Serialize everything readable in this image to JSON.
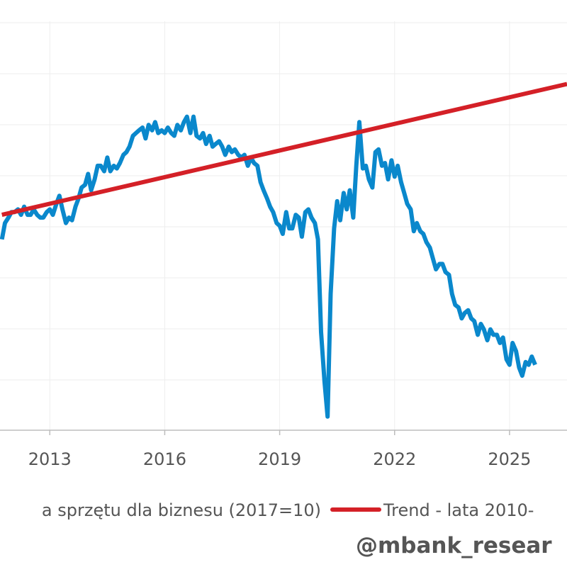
{
  "chart_data": {
    "type": "line",
    "title": "",
    "xlabel": "",
    "ylabel": "",
    "x_ticks": [
      "2013",
      "2016",
      "2019",
      "2022",
      "2025"
    ],
    "xlim": [
      2011.7,
      2026.5
    ],
    "ylim": [
      4.5,
      12.0
    ],
    "grid": true,
    "legend_position": "bottom",
    "series": [
      {
        "name": "…a sprzętu dla biznesu (2017=10)",
        "color": "#0a88cc",
        "x": [
          2011.75,
          2011.83,
          2011.92,
          2012.0,
          2012.08,
          2012.17,
          2012.25,
          2012.33,
          2012.42,
          2012.5,
          2012.58,
          2012.67,
          2012.75,
          2012.83,
          2012.92,
          2013.0,
          2013.08,
          2013.17,
          2013.25,
          2013.33,
          2013.42,
          2013.5,
          2013.58,
          2013.67,
          2013.75,
          2013.83,
          2013.92,
          2014.0,
          2014.08,
          2014.17,
          2014.25,
          2014.33,
          2014.42,
          2014.5,
          2014.58,
          2014.67,
          2014.75,
          2014.83,
          2014.92,
          2015.0,
          2015.08,
          2015.17,
          2015.25,
          2015.33,
          2015.42,
          2015.5,
          2015.58,
          2015.67,
          2015.75,
          2015.83,
          2015.92,
          2016.0,
          2016.08,
          2016.17,
          2016.25,
          2016.33,
          2016.42,
          2016.5,
          2016.58,
          2016.67,
          2016.75,
          2016.83,
          2016.92,
          2017.0,
          2017.08,
          2017.17,
          2017.25,
          2017.33,
          2017.42,
          2017.5,
          2017.58,
          2017.67,
          2017.75,
          2017.83,
          2017.92,
          2018.0,
          2018.08,
          2018.17,
          2018.25,
          2018.33,
          2018.42,
          2018.5,
          2018.58,
          2018.67,
          2018.75,
          2018.83,
          2018.92,
          2019.0,
          2019.08,
          2019.17,
          2019.25,
          2019.33,
          2019.42,
          2019.5,
          2019.58,
          2019.67,
          2019.75,
          2019.83,
          2019.92,
          2020.0,
          2020.08,
          2020.17,
          2020.25,
          2020.33,
          2020.42,
          2020.5,
          2020.58,
          2020.67,
          2020.75,
          2020.83,
          2020.92,
          2021.0,
          2021.08,
          2021.17,
          2021.25,
          2021.33,
          2021.42,
          2021.5,
          2021.58,
          2021.67,
          2021.75,
          2021.83,
          2021.92,
          2022.0,
          2022.08,
          2022.17,
          2022.25,
          2022.33,
          2022.42,
          2022.5,
          2022.58,
          2022.67,
          2022.75,
          2022.83,
          2022.92,
          2023.0,
          2023.08,
          2023.17,
          2023.25,
          2023.33,
          2023.42,
          2023.5,
          2023.58,
          2023.67,
          2023.75,
          2023.83,
          2023.92,
          2024.0,
          2024.08,
          2024.17,
          2024.25,
          2024.33,
          2024.42,
          2024.5,
          2024.58,
          2024.67,
          2024.75,
          2024.83,
          2024.92,
          2025.0,
          2025.08,
          2025.17,
          2025.25,
          2025.33,
          2025.42,
          2025.5,
          2025.58,
          2025.67
        ],
        "values": [
          8.0,
          8.3,
          8.4,
          8.5,
          8.5,
          8.55,
          8.45,
          8.6,
          8.45,
          8.45,
          8.55,
          8.45,
          8.4,
          8.4,
          8.5,
          8.55,
          8.45,
          8.65,
          8.8,
          8.55,
          8.3,
          8.4,
          8.35,
          8.6,
          8.75,
          8.95,
          9.0,
          9.2,
          8.9,
          9.1,
          9.35,
          9.35,
          9.25,
          9.5,
          9.25,
          9.35,
          9.3,
          9.4,
          9.55,
          9.6,
          9.7,
          9.9,
          9.95,
          10.0,
          10.05,
          9.85,
          10.1,
          10.0,
          10.15,
          9.95,
          10.0,
          9.95,
          10.05,
          9.95,
          9.9,
          10.1,
          10.0,
          10.15,
          10.25,
          9.95,
          10.25,
          9.9,
          9.85,
          9.95,
          9.75,
          9.9,
          9.7,
          9.75,
          9.8,
          9.7,
          9.55,
          9.7,
          9.6,
          9.65,
          9.55,
          9.5,
          9.55,
          9.35,
          9.5,
          9.4,
          9.35,
          9.05,
          8.9,
          8.75,
          8.6,
          8.5,
          8.3,
          8.25,
          8.1,
          8.5,
          8.2,
          8.2,
          8.45,
          8.4,
          8.05,
          8.5,
          8.55,
          8.4,
          8.3,
          8.0,
          6.3,
          5.4,
          4.75,
          7.0,
          8.2,
          8.7,
          8.35,
          8.85,
          8.55,
          8.9,
          8.4,
          9.35,
          10.15,
          9.3,
          9.35,
          9.1,
          8.95,
          9.6,
          9.65,
          9.35,
          9.4,
          9.1,
          9.45,
          9.15,
          9.35,
          9.05,
          8.85,
          8.65,
          8.55,
          8.15,
          8.3,
          8.15,
          8.1,
          7.95,
          7.85,
          7.65,
          7.45,
          7.55,
          7.55,
          7.4,
          7.35,
          7.0,
          6.8,
          6.75,
          6.55,
          6.65,
          6.7,
          6.55,
          6.5,
          6.25,
          6.45,
          6.35,
          6.15,
          6.35,
          6.25,
          6.25,
          6.1,
          6.2,
          5.8,
          5.7,
          6.1,
          5.95,
          5.65,
          5.5,
          5.75,
          5.7,
          5.85,
          5.7
        ]
      },
      {
        "name": "Trend - lata 2010-",
        "color": "#d42027",
        "x": [
          2011.75,
          2026.5
        ],
        "values": [
          8.45,
          10.85
        ]
      }
    ]
  },
  "legend": {
    "series1_label": "a sprzętu dla biznesu (2017=10)",
    "series2_label": "Trend - lata 2010-"
  },
  "watermark": "@mbank_resear"
}
